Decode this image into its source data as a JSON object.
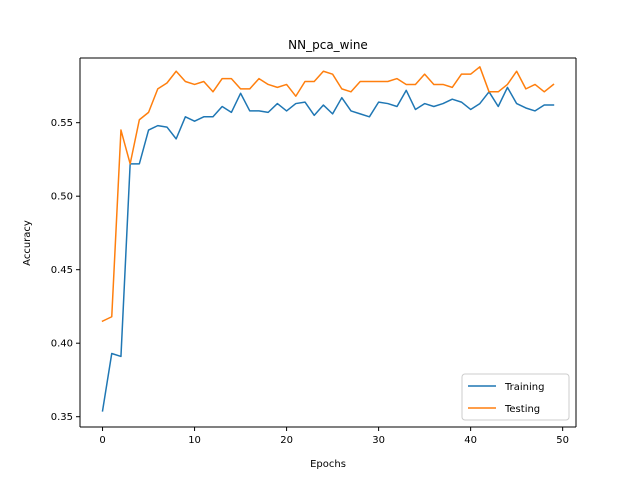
{
  "chart_data": {
    "type": "line",
    "title": "NN_pca_wine",
    "xlabel": "Epochs",
    "ylabel": "Accuracy",
    "xlim": [
      -2.45,
      51.45
    ],
    "ylim": [
      0.343,
      0.594
    ],
    "xticks": [
      0,
      10,
      20,
      30,
      40,
      50
    ],
    "yticks": [
      0.35,
      0.4,
      0.45,
      0.5,
      0.55
    ],
    "ytick_labels": [
      "0.35",
      "0.40",
      "0.45",
      "0.50",
      "0.55"
    ],
    "legend_position": "lower-right",
    "grid": false,
    "x": [
      0,
      1,
      2,
      3,
      4,
      5,
      6,
      7,
      8,
      9,
      10,
      11,
      12,
      13,
      14,
      15,
      16,
      17,
      18,
      19,
      20,
      21,
      22,
      23,
      24,
      25,
      26,
      27,
      28,
      29,
      30,
      31,
      32,
      33,
      34,
      35,
      36,
      37,
      38,
      39,
      40,
      41,
      42,
      43,
      44,
      45,
      46,
      47,
      48,
      49
    ],
    "series": [
      {
        "name": "Training",
        "color": "#1f77b4",
        "values": [
          0.354,
          0.393,
          0.391,
          0.522,
          0.522,
          0.545,
          0.548,
          0.547,
          0.539,
          0.554,
          0.551,
          0.554,
          0.554,
          0.561,
          0.557,
          0.57,
          0.558,
          0.558,
          0.557,
          0.563,
          0.558,
          0.563,
          0.564,
          0.555,
          0.562,
          0.556,
          0.567,
          0.558,
          0.556,
          0.554,
          0.564,
          0.563,
          0.561,
          0.572,
          0.559,
          0.563,
          0.561,
          0.563,
          0.566,
          0.564,
          0.559,
          0.563,
          0.571,
          0.561,
          0.574,
          0.563,
          0.56,
          0.558,
          0.562,
          0.562
        ]
      },
      {
        "name": "Testing",
        "color": "#ff7f0e",
        "values": [
          0.415,
          0.418,
          0.545,
          0.522,
          0.552,
          0.557,
          0.573,
          0.577,
          0.585,
          0.578,
          0.576,
          0.578,
          0.571,
          0.58,
          0.58,
          0.573,
          0.573,
          0.58,
          0.576,
          0.574,
          0.576,
          0.568,
          0.578,
          0.578,
          0.585,
          0.583,
          0.573,
          0.571,
          0.578,
          0.578,
          0.578,
          0.578,
          0.58,
          0.576,
          0.576,
          0.583,
          0.576,
          0.576,
          0.574,
          0.583,
          0.583,
          0.588,
          0.571,
          0.571,
          0.576,
          0.585,
          0.573,
          0.576,
          0.571,
          0.576
        ]
      }
    ]
  }
}
